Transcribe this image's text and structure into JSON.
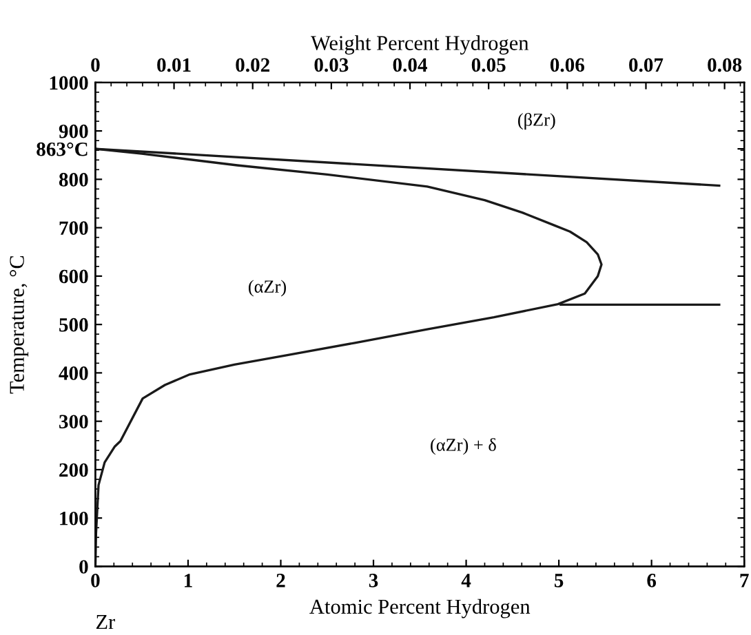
{
  "chart_data": {
    "type": "line",
    "xlabel": "Atomic Percent Hydrogen",
    "ylabel": "Temperature, °C",
    "x2label": "Weight Percent Hydrogen",
    "xlim": [
      0,
      7
    ],
    "xticks": [
      0,
      1,
      2,
      3,
      4,
      5,
      6,
      7
    ],
    "ylim": [
      0,
      1000
    ],
    "yticks": [
      0,
      100,
      200,
      300,
      400,
      500,
      600,
      700,
      800,
      {
        "value": 863,
        "label": "863°C"
      },
      900,
      1000
    ],
    "x2lim": [
      0,
      0.0825
    ],
    "x2ticks": [
      0,
      0.01,
      0.02,
      0.03,
      0.04,
      0.05,
      0.06,
      0.07,
      0.08
    ],
    "grid": false,
    "marker": "none",
    "line_style": "solid",
    "series": [
      {
        "color": "#1a1a1a",
        "x": [
          0,
          6.73
        ],
        "values": [
          863,
          787
        ]
      },
      {
        "color": "#1a1a1a",
        "x": [
          0,
          0.5,
          1.53,
          2.5,
          3.58,
          4.2,
          4.61,
          4.95,
          5.12,
          5.3,
          5.42,
          5.46,
          5.42,
          5.28,
          4.99,
          4.3,
          3.58,
          2.8,
          2.05,
          1.5,
          1.02,
          0.75,
          0.51,
          0.27,
          0.21,
          0.1,
          0.034,
          0.007,
          0
        ],
        "values": [
          863,
          853,
          829,
          810,
          785,
          757,
          731,
          705,
          692,
          670,
          645,
          624,
          600,
          564,
          542,
          515,
          490,
          462,
          436,
          417,
          397,
          375,
          347,
          259,
          248,
          215,
          168,
          68,
          0
        ]
      },
      {
        "color": "#1a1a1a",
        "x": [
          5.02,
          6.73
        ],
        "values": [
          541,
          541
        ]
      }
    ],
    "annotations": [
      "(βZr)",
      "(αZr)",
      "(αZr) + δ",
      "Zr"
    ]
  }
}
